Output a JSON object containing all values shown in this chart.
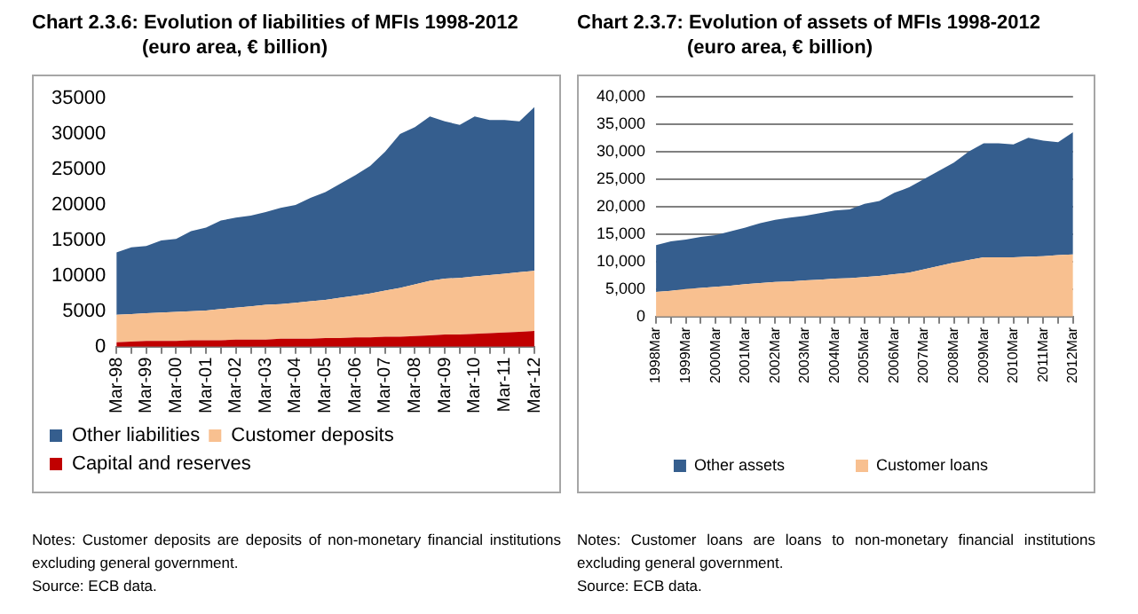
{
  "chart_data": [
    {
      "type": "area",
      "stacked": true,
      "title": "Chart 2.3.6: Evolution of liabilities of MFIs 1998-2012",
      "subtitle": "(euro area, € billion)",
      "categories": [
        "Mar-98",
        null,
        "Mar-99",
        null,
        "Mar-00",
        null,
        "Mar-01",
        null,
        "Mar-02",
        null,
        "Mar-03",
        null,
        "Mar-04",
        null,
        "Mar-05",
        null,
        "Mar-06",
        null,
        "Mar-07",
        null,
        "Mar-08",
        null,
        "Mar-09",
        null,
        "Mar-10",
        null,
        "Mar-11",
        null,
        "Mar-12"
      ],
      "series": [
        {
          "name": "Capital and reserves",
          "color": "#c00000",
          "values": [
            600,
            700,
            800,
            800,
            800,
            900,
            900,
            900,
            1000,
            1000,
            1000,
            1100,
            1100,
            1100,
            1200,
            1200,
            1300,
            1300,
            1400,
            1400,
            1500,
            1600,
            1700,
            1700,
            1800,
            1900,
            2000,
            2100,
            2200
          ]
        },
        {
          "name": "Customer deposits",
          "color": "#f8c090",
          "values": [
            3900,
            3900,
            3900,
            4000,
            4100,
            4100,
            4200,
            4400,
            4500,
            4700,
            4900,
            4900,
            5100,
            5300,
            5400,
            5700,
            5900,
            6200,
            6500,
            6900,
            7300,
            7700,
            7900,
            8000,
            8100,
            8200,
            8300,
            8400,
            8500
          ]
        },
        {
          "name": "Other liabilities",
          "color": "#355e8e",
          "values": [
            8800,
            9400,
            9500,
            10200,
            10300,
            11300,
            11700,
            12500,
            12700,
            12800,
            13100,
            13600,
            13800,
            14600,
            15200,
            16100,
            17000,
            18000,
            19600,
            21700,
            22200,
            23200,
            22200,
            21600,
            22600,
            21900,
            21700,
            21300,
            23100
          ]
        }
      ],
      "ylim": [
        0,
        35000
      ],
      "yticks": [
        0,
        5000,
        10000,
        15000,
        20000,
        25000,
        30000,
        35000
      ],
      "grid": false,
      "legend": "bottom",
      "annotations": [
        "Notes: Customer deposits are deposits of non-monetary financial institutions excluding general government.",
        "Source: ECB data."
      ]
    },
    {
      "type": "area",
      "stacked": true,
      "title": "Chart 2.3.7: Evolution of assets of MFIs 1998-2012",
      "subtitle": "(euro area, € billion)",
      "categories": [
        "1998Mar",
        null,
        "1999Mar",
        null,
        "2000Mar",
        null,
        "2001Mar",
        null,
        "2002Mar",
        null,
        "2003Mar",
        null,
        "2004Mar",
        null,
        "2005Mar",
        null,
        "2006Mar",
        null,
        "2007Mar",
        null,
        "2008Mar",
        null,
        "2009Mar",
        null,
        "2010Mar",
        null,
        "2011Mar",
        null,
        "2012Mar"
      ],
      "series": [
        {
          "name": "Customer loans",
          "color": "#f8c090",
          "values": [
            4500,
            4700,
            5000,
            5200,
            5400,
            5600,
            5900,
            6100,
            6300,
            6400,
            6600,
            6700,
            6900,
            7000,
            7200,
            7400,
            7700,
            8000,
            8600,
            9200,
            9800,
            10300,
            10800,
            10800,
            10800,
            10900,
            11000,
            11200,
            11300
          ]
        },
        {
          "name": "Other assets",
          "color": "#355e8e",
          "values": [
            8500,
            9000,
            9000,
            9300,
            9400,
            9900,
            10300,
            10900,
            11300,
            11600,
            11700,
            12100,
            12400,
            12500,
            13300,
            13600,
            14800,
            15500,
            16400,
            17300,
            18200,
            19700,
            20700,
            20700,
            20500,
            21600,
            21000,
            20500,
            22200
          ]
        }
      ],
      "ylim": [
        0,
        40000
      ],
      "yticks": [
        {
          "value": 0,
          "label": "0"
        },
        {
          "value": 5000,
          "label": "5,000"
        },
        {
          "value": 10000,
          "label": "10,000"
        },
        {
          "value": 15000,
          "label": "15,000"
        },
        {
          "value": 20000,
          "label": "20,000"
        },
        {
          "value": 25000,
          "label": "25,000"
        },
        {
          "value": 30000,
          "label": "30,000"
        },
        {
          "value": 35000,
          "label": "35,000"
        },
        {
          "value": 40000,
          "label": "40,000"
        }
      ],
      "grid": "y",
      "legend": "bottom",
      "annotations": [
        "Notes: Customer loans are loans to non-monetary financial institutions excluding general government.",
        "Source: ECB data."
      ]
    }
  ]
}
